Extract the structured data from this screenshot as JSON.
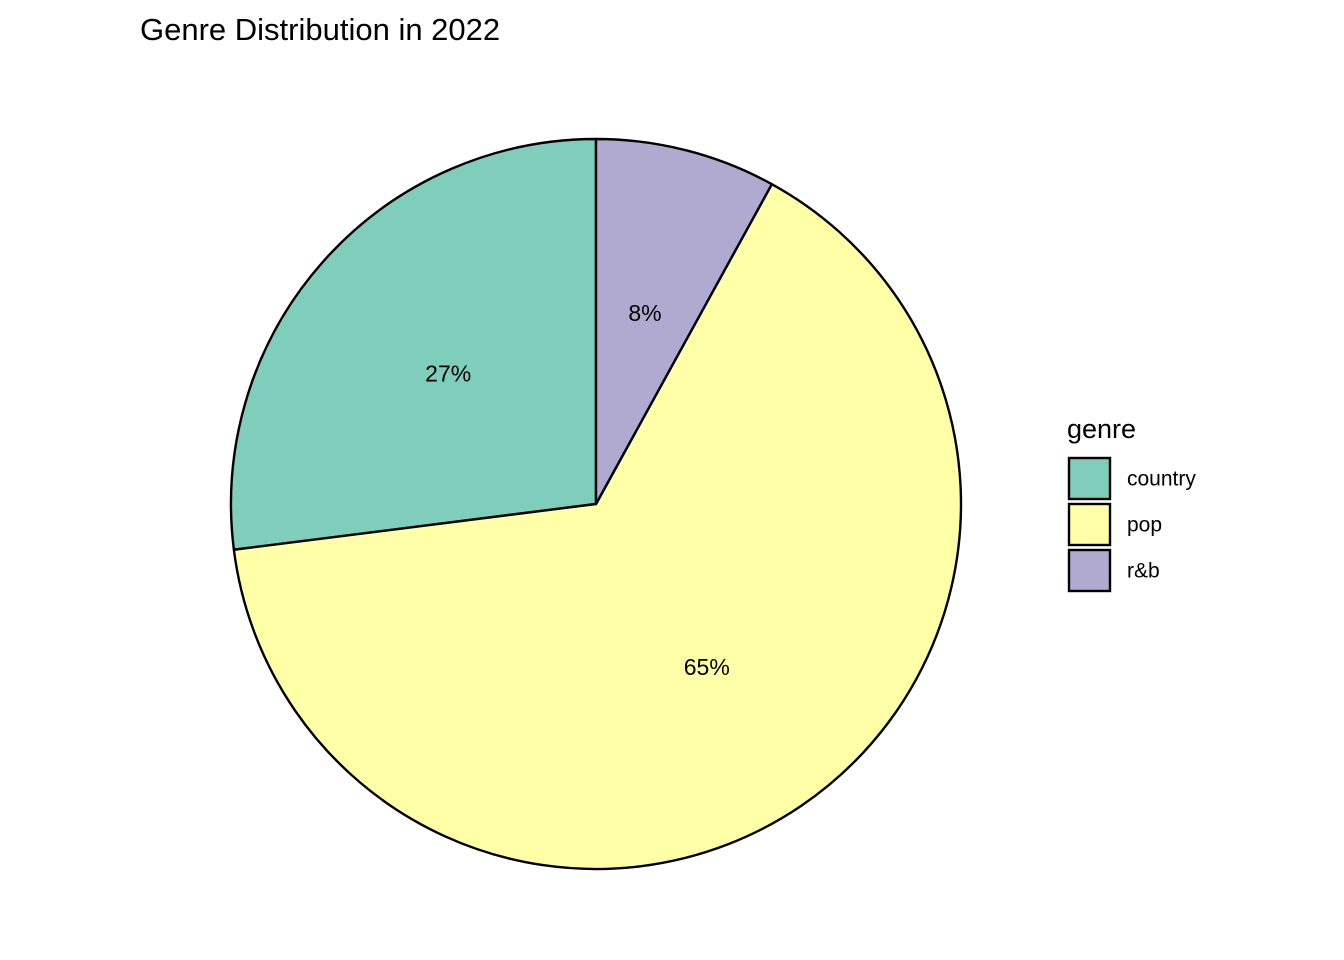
{
  "chart_data": {
    "type": "pie",
    "title": "Genre Distribution in 2022",
    "categories": [
      "country",
      "pop",
      "r&b"
    ],
    "values": [
      27,
      65,
      8
    ],
    "labels": [
      "27%",
      "65%",
      "8%"
    ],
    "colors": [
      "#7fcdbb",
      "#ffffa8",
      "#b0aad0"
    ],
    "slice_outline": "#000000",
    "start": "12 o'clock",
    "direction": "counterclockwise",
    "legend": {
      "title": "genre",
      "position": "right",
      "entries": [
        "country",
        "pop",
        "r&b"
      ]
    }
  }
}
